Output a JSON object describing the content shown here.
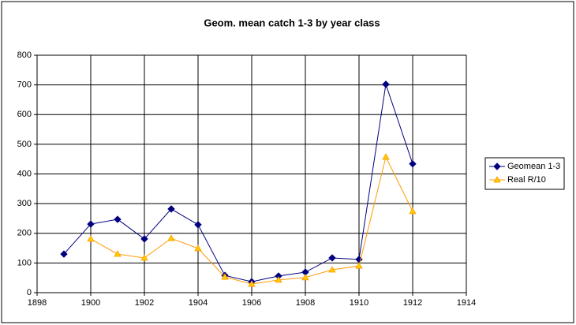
{
  "chart_data": {
    "type": "line",
    "title": "Geom. mean catch 1-3 by year class",
    "x": [
      1899,
      1900,
      1901,
      1902,
      1903,
      1904,
      1905,
      1906,
      1907,
      1908,
      1909,
      1910,
      1911,
      1912
    ],
    "series": [
      {
        "name": "Geomean 1-3",
        "color": "#000080",
        "marker": "diamond",
        "marker_fill": "#000080",
        "values": [
          130,
          231,
          247,
          181,
          282,
          229,
          58,
          37,
          56,
          69,
          117,
          112,
          702,
          434
        ]
      },
      {
        "name": "Real R/10",
        "color": "#FF9900",
        "marker": "triangle",
        "marker_fill": "#FFCC00",
        "values": [
          null,
          181,
          130,
          117,
          183,
          149,
          53,
          29,
          43,
          51,
          77,
          90,
          457,
          274
        ]
      }
    ],
    "xlim": [
      1898,
      1914
    ],
    "xticks": [
      1898,
      1900,
      1902,
      1904,
      1906,
      1908,
      1910,
      1912,
      1914
    ],
    "ylim": [
      0,
      800
    ],
    "yticks": [
      0,
      100,
      200,
      300,
      400,
      500,
      600,
      700,
      800
    ],
    "grid": true,
    "legend": "right"
  }
}
